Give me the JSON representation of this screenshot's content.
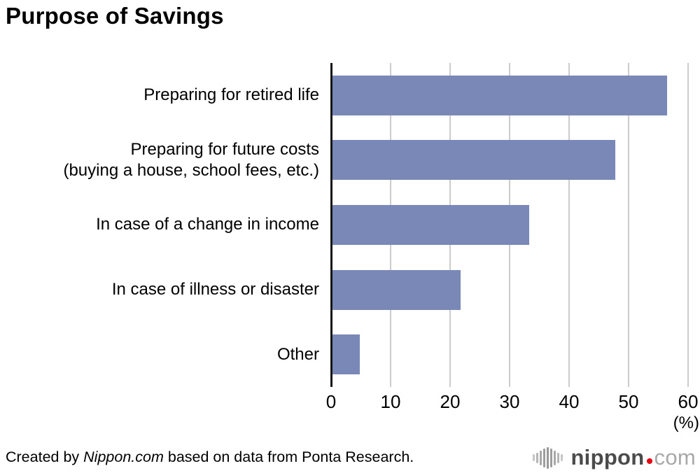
{
  "title": "Purpose of Savings",
  "chart_data": {
    "type": "bar",
    "orientation": "horizontal",
    "title": "Purpose of Savings",
    "categories": [
      "Preparing for retired life",
      "Preparing for future costs\n(buying a house, school fees, etc.)",
      "In case of a change in income",
      "In case of illness or disaster",
      "Other"
    ],
    "values": [
      56.5,
      47.8,
      33.3,
      21.8,
      4.8
    ],
    "xlim": [
      0,
      60
    ],
    "xticks": [
      0,
      10,
      20,
      30,
      40,
      50,
      60
    ],
    "unit_label": "(%)",
    "grid": true,
    "legend": false,
    "bar_color": "#7a88b8",
    "gridline_color": "#cccccc",
    "axis_color": "#161616"
  },
  "footer": {
    "credit_prefix": "Created by ",
    "credit_source": "Nippon.com",
    "credit_suffix": " based on data from Ponta Research.",
    "logo": {
      "icon": "soundwave-icon",
      "name_bold": "nippon",
      "name_light": "com",
      "dot_color": "#e60012",
      "icon_bar_heights": [
        10,
        15,
        21,
        27,
        31,
        27,
        21,
        15,
        10
      ],
      "icon_bar_colors": [
        "#c6c6c6",
        "#b5b5b5",
        "#a8a8a8",
        "#9d9d9d",
        "#979797",
        "#9d9d9d",
        "#a8a8a8",
        "#b5b5b5",
        "#c6c6c6"
      ]
    }
  }
}
